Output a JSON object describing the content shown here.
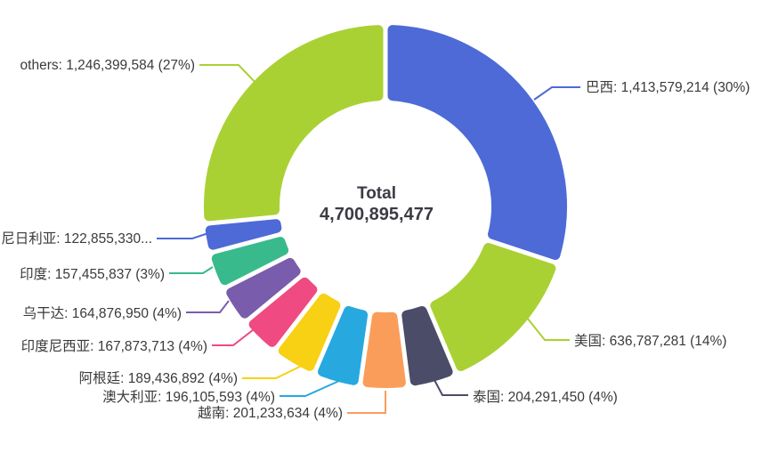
{
  "chart_data": {
    "type": "pie",
    "subtype": "donut",
    "title": "",
    "center": {
      "title": "Total",
      "value": "4,700,895,477"
    },
    "total": 4700895477,
    "start_angle": "top",
    "direction": "clockwise",
    "inner_radius_ratio": 0.58,
    "legend_position": "callout-labels",
    "background": "#ffffff",
    "label_text_color": "#3a3a3a",
    "center_text_color": "#3b3b44",
    "slices": [
      {
        "name": "巴西",
        "value": 1413579214,
        "pct": 30,
        "label": "巴西: 1,413,579,214 (30%)",
        "color": "#4d6ad7"
      },
      {
        "name": "美国",
        "value": 636787281,
        "pct": 14,
        "label": "美国: 636,787,281 (14%)",
        "color": "#a9d134"
      },
      {
        "name": "泰国",
        "value": 204291450,
        "pct": 4,
        "label": "泰国: 204,291,450 (4%)",
        "color": "#4a4c68"
      },
      {
        "name": "越南",
        "value": 201233634,
        "pct": 4,
        "label": "越南: 201,233,634 (4%)",
        "color": "#fa9d5b"
      },
      {
        "name": "澳大利亚",
        "value": 196105593,
        "pct": 4,
        "label": "澳大利亚: 196,105,593 (4%)",
        "color": "#27a8df"
      },
      {
        "name": "阿根廷",
        "value": 189436892,
        "pct": 4,
        "label": "阿根廷: 189,436,892 (4%)",
        "color": "#f8d014"
      },
      {
        "name": "印度尼西亚",
        "value": 167873713,
        "pct": 4,
        "label": "印度尼西亚: 167,873,713 (4%)",
        "color": "#ef4a81"
      },
      {
        "name": "乌干达",
        "value": 164876950,
        "pct": 4,
        "label": "乌干达: 164,876,950 (4%)",
        "color": "#795cac"
      },
      {
        "name": "印度",
        "value": 157455837,
        "pct": 3,
        "label": "印度: 157,455,837 (3%)",
        "color": "#38ba8d"
      },
      {
        "name": "尼日利亚",
        "value": 122855330,
        "pct": null,
        "label": "尼日利亚: 122,855,330...",
        "color": "#4d6ad7"
      },
      {
        "name": "others",
        "value": 1246399584,
        "pct": 27,
        "label": "others: 1,246,399,584 (27%)",
        "color": "#a9d134"
      }
    ]
  }
}
